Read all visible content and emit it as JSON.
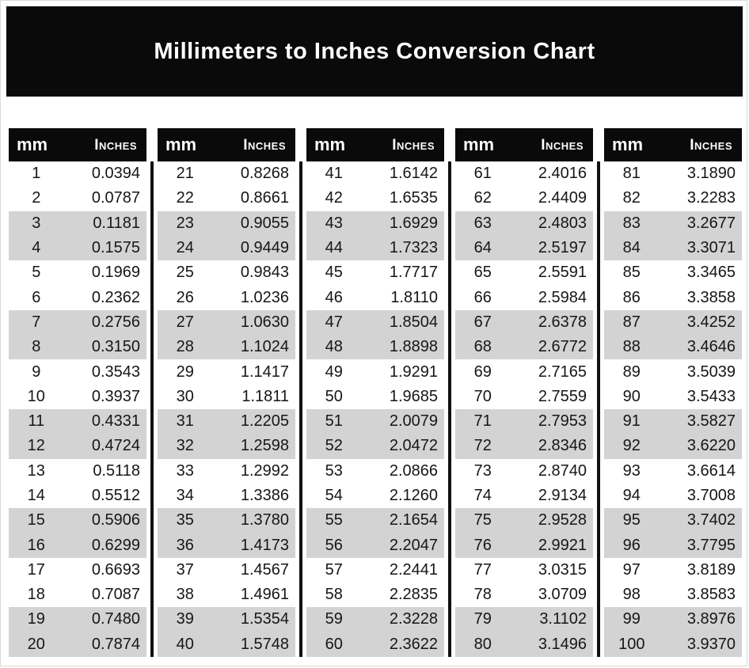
{
  "title": "Millimeters to Inches Conversion Chart",
  "columns": {
    "mm_label": "mm",
    "inches_label": "Inches"
  },
  "colors": {
    "title_bg": "#0a0a0a",
    "header_bg": "#0a0a0a",
    "stripe": "#d3d3d3"
  },
  "tables": [
    {
      "rows": [
        [
          "1",
          "0.0394"
        ],
        [
          "2",
          "0.0787"
        ],
        [
          "3",
          "0.1181"
        ],
        [
          "4",
          "0.1575"
        ],
        [
          "5",
          "0.1969"
        ],
        [
          "6",
          "0.2362"
        ],
        [
          "7",
          "0.2756"
        ],
        [
          "8",
          "0.3150"
        ],
        [
          "9",
          "0.3543"
        ],
        [
          "10",
          "0.3937"
        ],
        [
          "11",
          "0.4331"
        ],
        [
          "12",
          "0.4724"
        ],
        [
          "13",
          "0.5118"
        ],
        [
          "14",
          "0.5512"
        ],
        [
          "15",
          "0.5906"
        ],
        [
          "16",
          "0.6299"
        ],
        [
          "17",
          "0.6693"
        ],
        [
          "18",
          "0.7087"
        ],
        [
          "19",
          "0.7480"
        ],
        [
          "20",
          "0.7874"
        ]
      ]
    },
    {
      "rows": [
        [
          "21",
          "0.8268"
        ],
        [
          "22",
          "0.8661"
        ],
        [
          "23",
          "0.9055"
        ],
        [
          "24",
          "0.9449"
        ],
        [
          "25",
          "0.9843"
        ],
        [
          "26",
          "1.0236"
        ],
        [
          "27",
          "1.0630"
        ],
        [
          "28",
          "1.1024"
        ],
        [
          "29",
          "1.1417"
        ],
        [
          "30",
          "1.1811"
        ],
        [
          "31",
          "1.2205"
        ],
        [
          "32",
          "1.2598"
        ],
        [
          "33",
          "1.2992"
        ],
        [
          "34",
          "1.3386"
        ],
        [
          "35",
          "1.3780"
        ],
        [
          "36",
          "1.4173"
        ],
        [
          "37",
          "1.4567"
        ],
        [
          "38",
          "1.4961"
        ],
        [
          "39",
          "1.5354"
        ],
        [
          "40",
          "1.5748"
        ]
      ]
    },
    {
      "rows": [
        [
          "41",
          "1.6142"
        ],
        [
          "42",
          "1.6535"
        ],
        [
          "43",
          "1.6929"
        ],
        [
          "44",
          "1.7323"
        ],
        [
          "45",
          "1.7717"
        ],
        [
          "46",
          "1.8110"
        ],
        [
          "47",
          "1.8504"
        ],
        [
          "48",
          "1.8898"
        ],
        [
          "49",
          "1.9291"
        ],
        [
          "50",
          "1.9685"
        ],
        [
          "51",
          "2.0079"
        ],
        [
          "52",
          "2.0472"
        ],
        [
          "53",
          "2.0866"
        ],
        [
          "54",
          "2.1260"
        ],
        [
          "55",
          "2.1654"
        ],
        [
          "56",
          "2.2047"
        ],
        [
          "57",
          "2.2441"
        ],
        [
          "58",
          "2.2835"
        ],
        [
          "59",
          "2.3228"
        ],
        [
          "60",
          "2.3622"
        ]
      ]
    },
    {
      "rows": [
        [
          "61",
          "2.4016"
        ],
        [
          "62",
          "2.4409"
        ],
        [
          "63",
          "2.4803"
        ],
        [
          "64",
          "2.5197"
        ],
        [
          "65",
          "2.5591"
        ],
        [
          "66",
          "2.5984"
        ],
        [
          "67",
          "2.6378"
        ],
        [
          "68",
          "2.6772"
        ],
        [
          "69",
          "2.7165"
        ],
        [
          "70",
          "2.7559"
        ],
        [
          "71",
          "2.7953"
        ],
        [
          "72",
          "2.8346"
        ],
        [
          "73",
          "2.8740"
        ],
        [
          "74",
          "2.9134"
        ],
        [
          "75",
          "2.9528"
        ],
        [
          "76",
          "2.9921"
        ],
        [
          "77",
          "3.0315"
        ],
        [
          "78",
          "3.0709"
        ],
        [
          "79",
          "3.1102"
        ],
        [
          "80",
          "3.1496"
        ]
      ]
    },
    {
      "rows": [
        [
          "81",
          "3.1890"
        ],
        [
          "82",
          "3.2283"
        ],
        [
          "83",
          "3.2677"
        ],
        [
          "84",
          "3.3071"
        ],
        [
          "85",
          "3.3465"
        ],
        [
          "86",
          "3.3858"
        ],
        [
          "87",
          "3.4252"
        ],
        [
          "88",
          "3.4646"
        ],
        [
          "89",
          "3.5039"
        ],
        [
          "90",
          "3.5433"
        ],
        [
          "91",
          "3.5827"
        ],
        [
          "92",
          "3.6220"
        ],
        [
          "93",
          "3.6614"
        ],
        [
          "94",
          "3.7008"
        ],
        [
          "95",
          "3.7402"
        ],
        [
          "96",
          "3.7795"
        ],
        [
          "97",
          "3.8189"
        ],
        [
          "98",
          "3.8583"
        ],
        [
          "99",
          "3.8976"
        ],
        [
          "100",
          "3.9370"
        ]
      ]
    }
  ]
}
